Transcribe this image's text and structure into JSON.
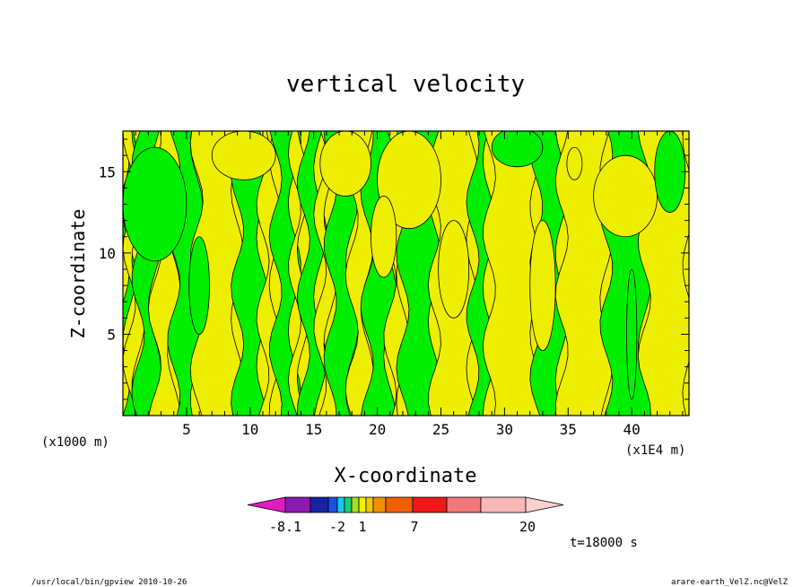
{
  "chart_data": {
    "type": "heatmap",
    "title": "vertical velocity",
    "xlabel": "X-coordinate",
    "ylabel": "Z-coordinate",
    "x_unit_left": "(x1000 m)",
    "x_unit_right": "(x1E4 m)",
    "xlim": [
      0,
      44.5
    ],
    "ylim": [
      0,
      17.5
    ],
    "x_ticks": [
      5,
      10,
      15,
      20,
      25,
      30,
      35,
      40
    ],
    "y_ticks": [
      5,
      10,
      15
    ],
    "colorbar": {
      "levels_labeled": [
        "-8.1",
        "-2",
        "1",
        "7",
        "20"
      ],
      "colors": [
        "#e01cc0",
        "#8a1ab0",
        "#1a22a8",
        "#1a50e8",
        "#18c8f0",
        "#18d070",
        "#a8e020",
        "#f0f000",
        "#f0c800",
        "#f09000",
        "#f06000",
        "#f01818",
        "#f07878",
        "#f8b8b8",
        "#f8d0d0"
      ]
    },
    "field_colors": {
      "negative": "#00ee00",
      "positive": "#eeee00",
      "contour": "#000000"
    },
    "bands": [
      {
        "x0": 0.0,
        "x1": 0.5,
        "sign": "neg"
      },
      {
        "x0": 0.5,
        "x1": 1.2,
        "sign": "pos"
      },
      {
        "x0": 1.2,
        "x1": 2.5,
        "sign": "neg"
      },
      {
        "x0": 2.5,
        "x1": 4.0,
        "sign": "pos"
      },
      {
        "x0": 4.0,
        "x1": 5.8,
        "sign": "neg"
      },
      {
        "x0": 5.8,
        "x1": 9.0,
        "sign": "pos"
      },
      {
        "x0": 9.0,
        "x1": 11.0,
        "sign": "neg"
      },
      {
        "x0": 11.0,
        "x1": 12.0,
        "sign": "pos"
      },
      {
        "x0": 12.0,
        "x1": 13.5,
        "sign": "neg"
      },
      {
        "x0": 13.5,
        "x1": 14.2,
        "sign": "pos"
      },
      {
        "x0": 14.2,
        "x1": 15.5,
        "sign": "neg"
      },
      {
        "x0": 15.5,
        "x1": 16.3,
        "sign": "pos"
      },
      {
        "x0": 16.3,
        "x1": 18.0,
        "sign": "neg"
      },
      {
        "x0": 18.0,
        "x1": 19.2,
        "sign": "pos"
      },
      {
        "x0": 19.2,
        "x1": 21.0,
        "sign": "neg"
      },
      {
        "x0": 21.0,
        "x1": 22.0,
        "sign": "pos"
      },
      {
        "x0": 22.0,
        "x1": 24.5,
        "sign": "neg"
      },
      {
        "x0": 24.5,
        "x1": 27.5,
        "sign": "pos"
      },
      {
        "x0": 27.5,
        "x1": 28.8,
        "sign": "neg"
      },
      {
        "x0": 28.8,
        "x1": 32.5,
        "sign": "pos"
      },
      {
        "x0": 32.5,
        "x1": 34.5,
        "sign": "neg"
      },
      {
        "x0": 34.5,
        "x1": 38.0,
        "sign": "pos"
      },
      {
        "x0": 38.0,
        "x1": 41.0,
        "sign": "neg"
      },
      {
        "x0": 41.0,
        "x1": 44.5,
        "sign": "pos"
      }
    ],
    "blobs": [
      {
        "x": 2.5,
        "y": 13.0,
        "rx": 2.5,
        "ry": 3.5,
        "sign": "neg"
      },
      {
        "x": 9.5,
        "y": 16.0,
        "rx": 2.5,
        "ry": 1.5,
        "sign": "pos"
      },
      {
        "x": 17.5,
        "y": 15.5,
        "rx": 2.0,
        "ry": 2.0,
        "sign": "pos"
      },
      {
        "x": 22.5,
        "y": 14.5,
        "rx": 2.5,
        "ry": 3.0,
        "sign": "pos"
      },
      {
        "x": 31.0,
        "y": 16.5,
        "rx": 2.0,
        "ry": 1.2,
        "sign": "neg"
      },
      {
        "x": 35.5,
        "y": 15.5,
        "rx": 0.6,
        "ry": 1.0,
        "sign": "pos"
      },
      {
        "x": 39.5,
        "y": 13.5,
        "rx": 2.5,
        "ry": 2.5,
        "sign": "pos"
      },
      {
        "x": 43.0,
        "y": 15.0,
        "rx": 1.2,
        "ry": 2.5,
        "sign": "neg"
      },
      {
        "x": 26.0,
        "y": 9.0,
        "rx": 1.2,
        "ry": 3.0,
        "sign": "pos"
      },
      {
        "x": 20.5,
        "y": 11.0,
        "rx": 1.0,
        "ry": 2.5,
        "sign": "pos"
      },
      {
        "x": 6.0,
        "y": 8.0,
        "rx": 0.8,
        "ry": 3.0,
        "sign": "neg"
      },
      {
        "x": 33.0,
        "y": 8.0,
        "rx": 1.0,
        "ry": 4.0,
        "sign": "pos"
      },
      {
        "x": 40.0,
        "y": 5.0,
        "rx": 0.4,
        "ry": 4.0,
        "sign": "neg"
      }
    ]
  },
  "footer": {
    "time_label": "t=18000 s",
    "left_info": "/usr/local/bin/gpview  2010-10-26",
    "right_info": "arare-earth_VelZ.nc@VelZ"
  }
}
